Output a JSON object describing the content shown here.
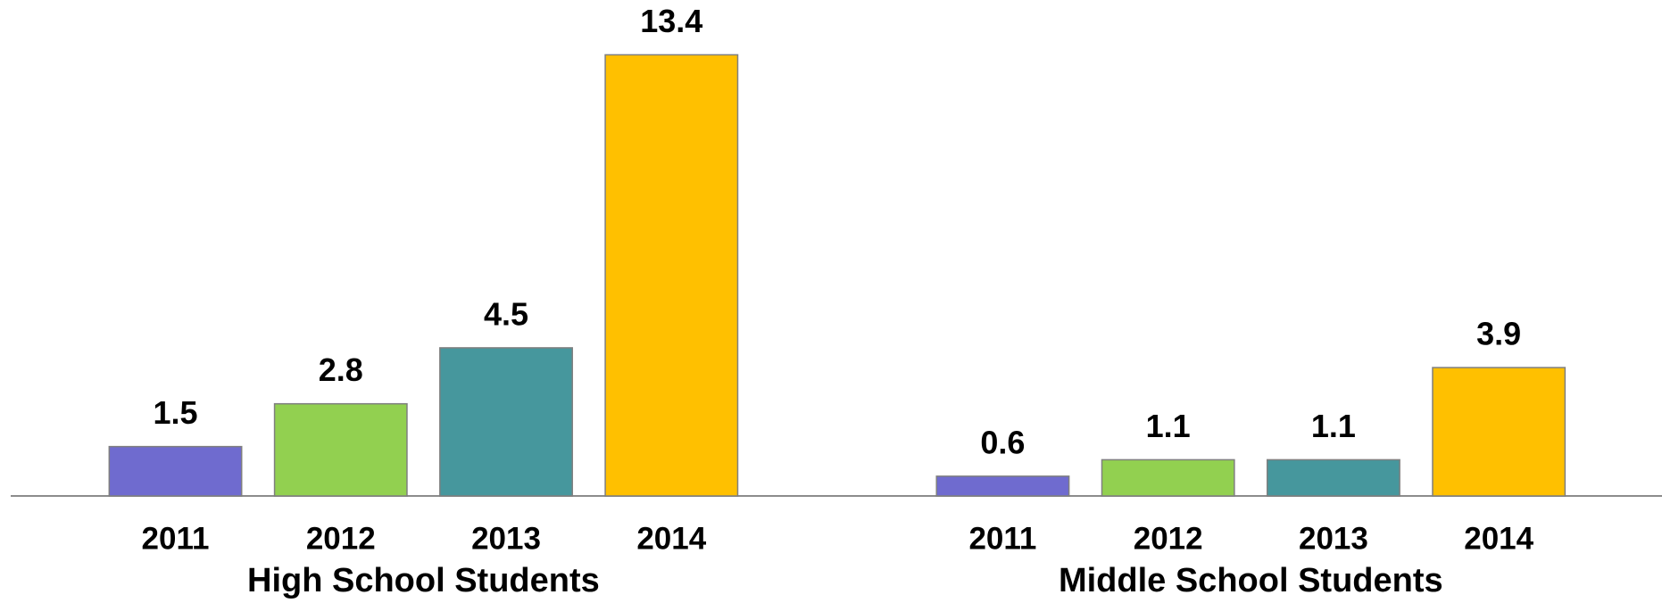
{
  "chart_data": {
    "type": "bar",
    "categories": [
      "High School Students",
      "Middle School Students"
    ],
    "series": [
      {
        "name": "2011",
        "color": "#6f6bcf",
        "values": [
          1.5,
          0.6
        ]
      },
      {
        "name": "2012",
        "color": "#92d050",
        "values": [
          2.8,
          1.1
        ]
      },
      {
        "name": "2013",
        "color": "#46979d",
        "values": [
          4.5,
          1.1
        ]
      },
      {
        "name": "2014",
        "color": "#ffc000",
        "values": [
          13.4,
          3.9
        ]
      }
    ],
    "ylim": [
      0,
      15
    ]
  }
}
